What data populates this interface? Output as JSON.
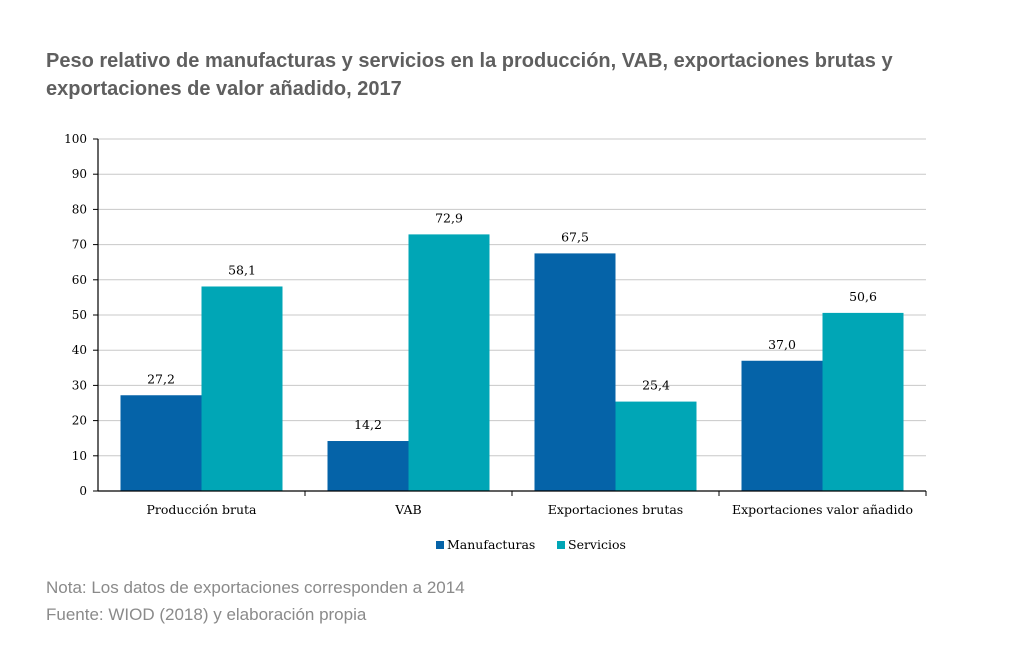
{
  "title": "Peso relativo de manufacturas y servicios en la producción, VAB, exportaciones brutas y exportaciones de valor añadido, 2017",
  "notes": {
    "nota": "Nota: Los datos de exportaciones corresponden a 2014",
    "fuente": "Fuente: WIOD (2018) y elaboración propia"
  },
  "colors": {
    "manufacturas": "#0563a8",
    "servicios": "#00a6b6",
    "grid": "#c8c8c8",
    "axis": "#000000"
  },
  "chart_data": {
    "type": "bar",
    "title": "Peso relativo de manufacturas y servicios en la producción, VAB, exportaciones brutas y exportaciones de valor añadido, 2017",
    "xlabel": "",
    "ylabel": "",
    "ylim": [
      0,
      100
    ],
    "yticks": [
      0,
      10,
      20,
      30,
      40,
      50,
      60,
      70,
      80,
      90,
      100
    ],
    "grid": true,
    "legend_position": "bottom",
    "categories": [
      "Producción bruta",
      "VAB",
      "Exportaciones brutas",
      "Exportaciones valor añadido"
    ],
    "series": [
      {
        "name": "Manufacturas",
        "values": [
          27.2,
          14.2,
          67.5,
          37.0
        ],
        "labels": [
          "27,2",
          "14,2",
          "67,5",
          "37,0"
        ]
      },
      {
        "name": "Servicios",
        "values": [
          58.1,
          72.9,
          25.4,
          50.6
        ],
        "labels": [
          "58,1",
          "72,9",
          "25,4",
          "50,6"
        ]
      }
    ]
  }
}
